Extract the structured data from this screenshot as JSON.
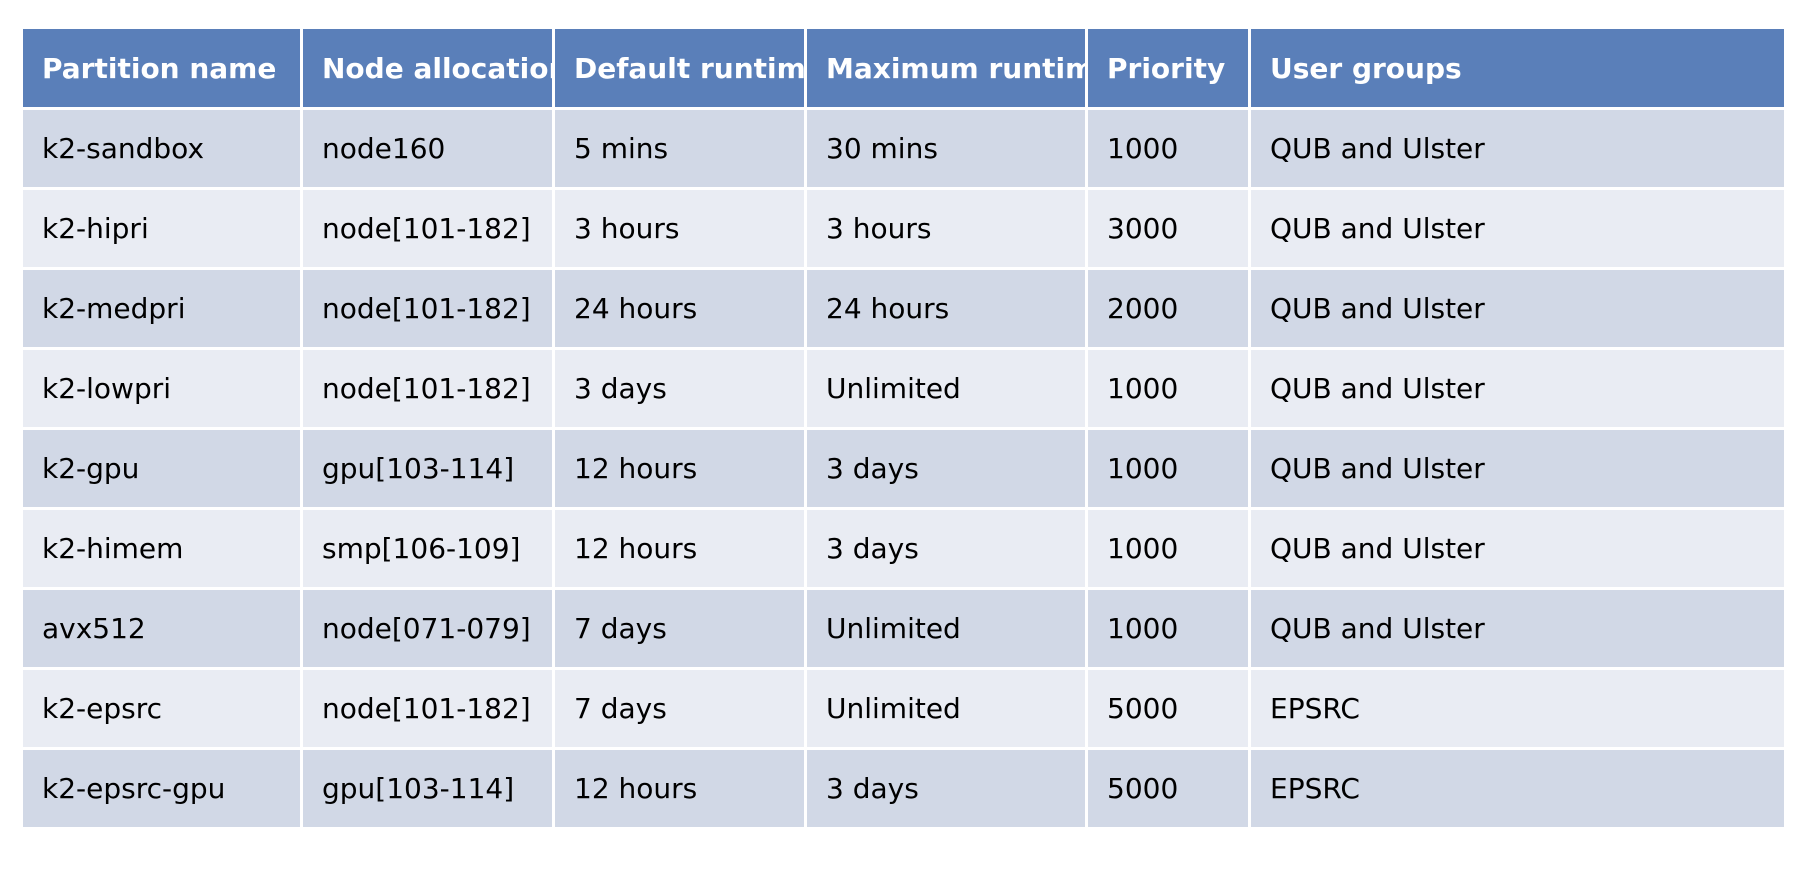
{
  "table": {
    "headers": [
      "Partition name",
      "Node allocation",
      "Default runtime",
      "Maximum runtime",
      "Priority",
      "User groups"
    ],
    "rows": [
      [
        "k2-sandbox",
        "node160",
        "5 mins",
        "30 mins",
        "1000",
        "QUB and Ulster"
      ],
      [
        "k2-hipri",
        "node[101-182]",
        "3 hours",
        "3 hours",
        "3000",
        "QUB and Ulster"
      ],
      [
        "k2-medpri",
        "node[101-182]",
        "24 hours",
        "24 hours",
        "2000",
        "QUB and Ulster"
      ],
      [
        "k2-lowpri",
        "node[101-182]",
        "3 days",
        "Unlimited",
        "1000",
        "QUB and Ulster"
      ],
      [
        "k2-gpu",
        "gpu[103-114]",
        "12 hours",
        "3 days",
        "1000",
        "QUB and Ulster"
      ],
      [
        "k2-himem",
        "smp[106-109]",
        "12 hours",
        "3 days",
        "1000",
        "QUB and Ulster"
      ],
      [
        "avx512",
        "node[071-079]",
        "7 days",
        "Unlimited",
        "1000",
        "QUB and Ulster"
      ],
      [
        "k2-epsrc",
        "node[101-182]",
        "7 days",
        "Unlimited",
        "5000",
        "EPSRC"
      ],
      [
        "k2-epsrc-gpu",
        "gpu[103-114]",
        "12 hours",
        "3 days",
        "5000",
        "EPSRC"
      ]
    ],
    "colors": {
      "header_bg": "#5a7fb9",
      "header_text": "#ffffff",
      "row_odd_bg": "#d1d8e6",
      "row_even_bg": "#e9ecf3",
      "grid_line": "#ffffff"
    }
  }
}
